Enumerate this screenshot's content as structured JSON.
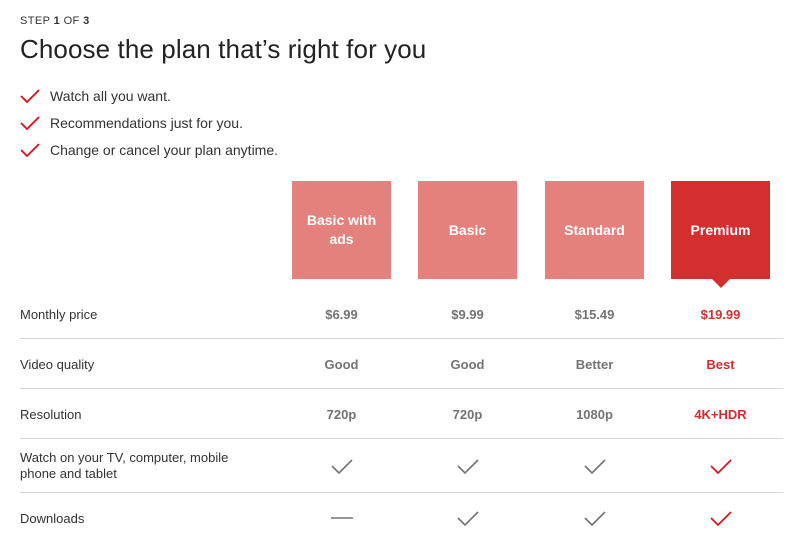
{
  "header": {
    "step_prefix": "STEP ",
    "step_current": "1",
    "step_middle": " OF ",
    "step_total": "3",
    "title": "Choose the plan that’s right for you"
  },
  "benefits": [
    "Watch all you want.",
    "Recommendations just for you.",
    "Change or cancel your plan anytime."
  ],
  "plans": [
    {
      "name": "Basic with ads",
      "selected": false
    },
    {
      "name": "Basic",
      "selected": false
    },
    {
      "name": "Standard",
      "selected": false
    },
    {
      "name": "Premium",
      "selected": true
    }
  ],
  "rows": [
    {
      "label": "Monthly price",
      "values": [
        "$6.99",
        "$9.99",
        "$15.49",
        "$19.99"
      ]
    },
    {
      "label": "Video quality",
      "values": [
        "Good",
        "Good",
        "Better",
        "Best"
      ]
    },
    {
      "label": "Resolution",
      "values": [
        "720p",
        "720p",
        "1080p",
        "4K+HDR"
      ]
    },
    {
      "label": "Watch on your TV, computer, mobile phone and tablet",
      "values": [
        "check-icon",
        "check-icon",
        "check-icon",
        "check-icon"
      ]
    },
    {
      "label": "Downloads",
      "values": [
        "dash-icon",
        "check-icon",
        "check-icon",
        "check-icon"
      ]
    }
  ],
  "colors": {
    "accent": "#e50914",
    "selected_plan": "#d32f2f",
    "unselected_plan": "#e5817d",
    "muted_text": "#737373",
    "divider": "#d6d6d6"
  }
}
